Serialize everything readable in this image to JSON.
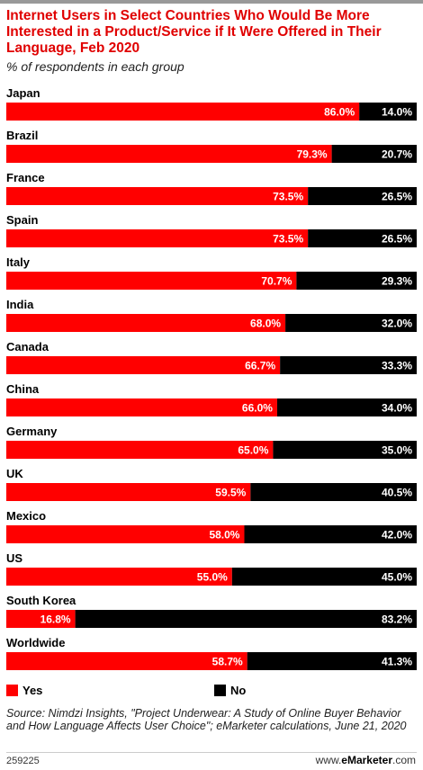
{
  "header": {
    "title": "Internet Users in Select Countries Who Would Be More Interested in a Product/Service if It Were Offered in Their Language, Feb 2020",
    "subtitle": "% of respondents in each group"
  },
  "chart_data": {
    "type": "bar",
    "stacked": true,
    "orientation": "horizontal",
    "categories": [
      "Japan",
      "Brazil",
      "France",
      "Spain",
      "Italy",
      "India",
      "Canada",
      "China",
      "Germany",
      "UK",
      "Mexico",
      "US",
      "South Korea",
      "Worldwide"
    ],
    "series": [
      {
        "name": "Yes",
        "color": "#ff0000",
        "values": [
          86.0,
          79.3,
          73.5,
          73.5,
          70.7,
          68.0,
          66.7,
          66.0,
          65.0,
          59.5,
          58.0,
          55.0,
          16.8,
          58.7
        ]
      },
      {
        "name": "No",
        "color": "#000000",
        "values": [
          14.0,
          20.7,
          26.5,
          26.5,
          29.3,
          32.0,
          33.3,
          34.0,
          35.0,
          40.5,
          42.0,
          45.0,
          83.2,
          41.3
        ]
      }
    ],
    "value_suffix": "%",
    "xlim": [
      0,
      100
    ],
    "legend": "bottom-left",
    "grid": false
  },
  "legend": {
    "yes_label": "Yes",
    "no_label": "No",
    "yes_color": "#ff0000",
    "no_color": "#000000"
  },
  "footer": {
    "source": "Source: Nimdzi Insights, \"Project Underwear: A Study of Online Buyer Behavior and How Language Affects User Choice\"; eMarketer calculations, June 21, 2020",
    "chart_id": "259225",
    "brand_prefix": "www.",
    "brand_name": "eMarketer",
    "brand_suffix": ".com"
  }
}
